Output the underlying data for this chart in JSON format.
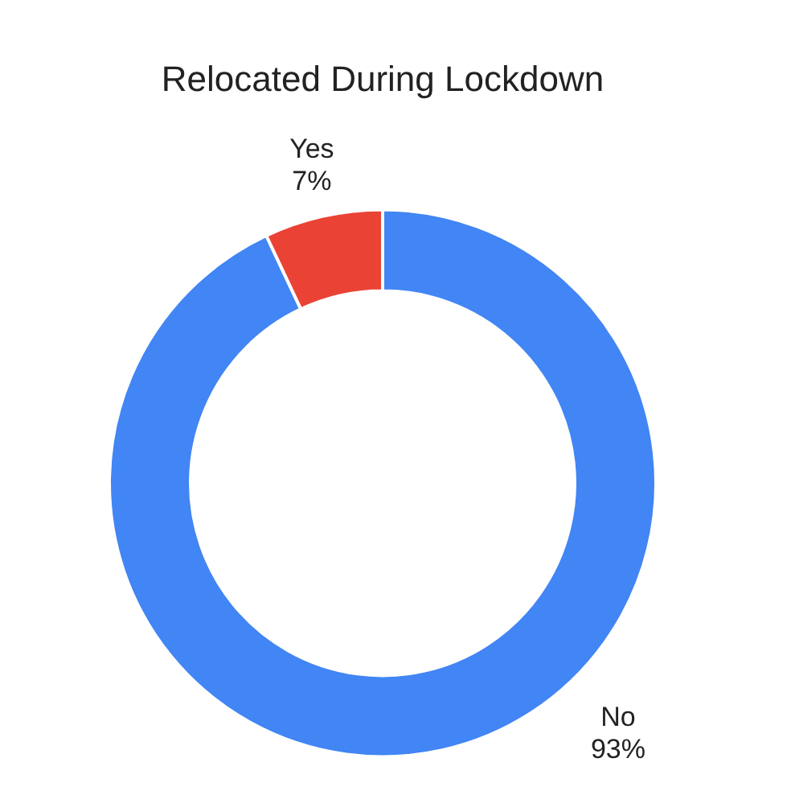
{
  "chart_data": {
    "type": "donut",
    "title": "Relocated During Lockdown",
    "categories": [
      "No",
      "Yes"
    ],
    "values": [
      93,
      7
    ],
    "colors": [
      "#4285f4",
      "#ea4335"
    ],
    "value_labels": [
      "93%",
      "7%"
    ],
    "legend": false
  }
}
